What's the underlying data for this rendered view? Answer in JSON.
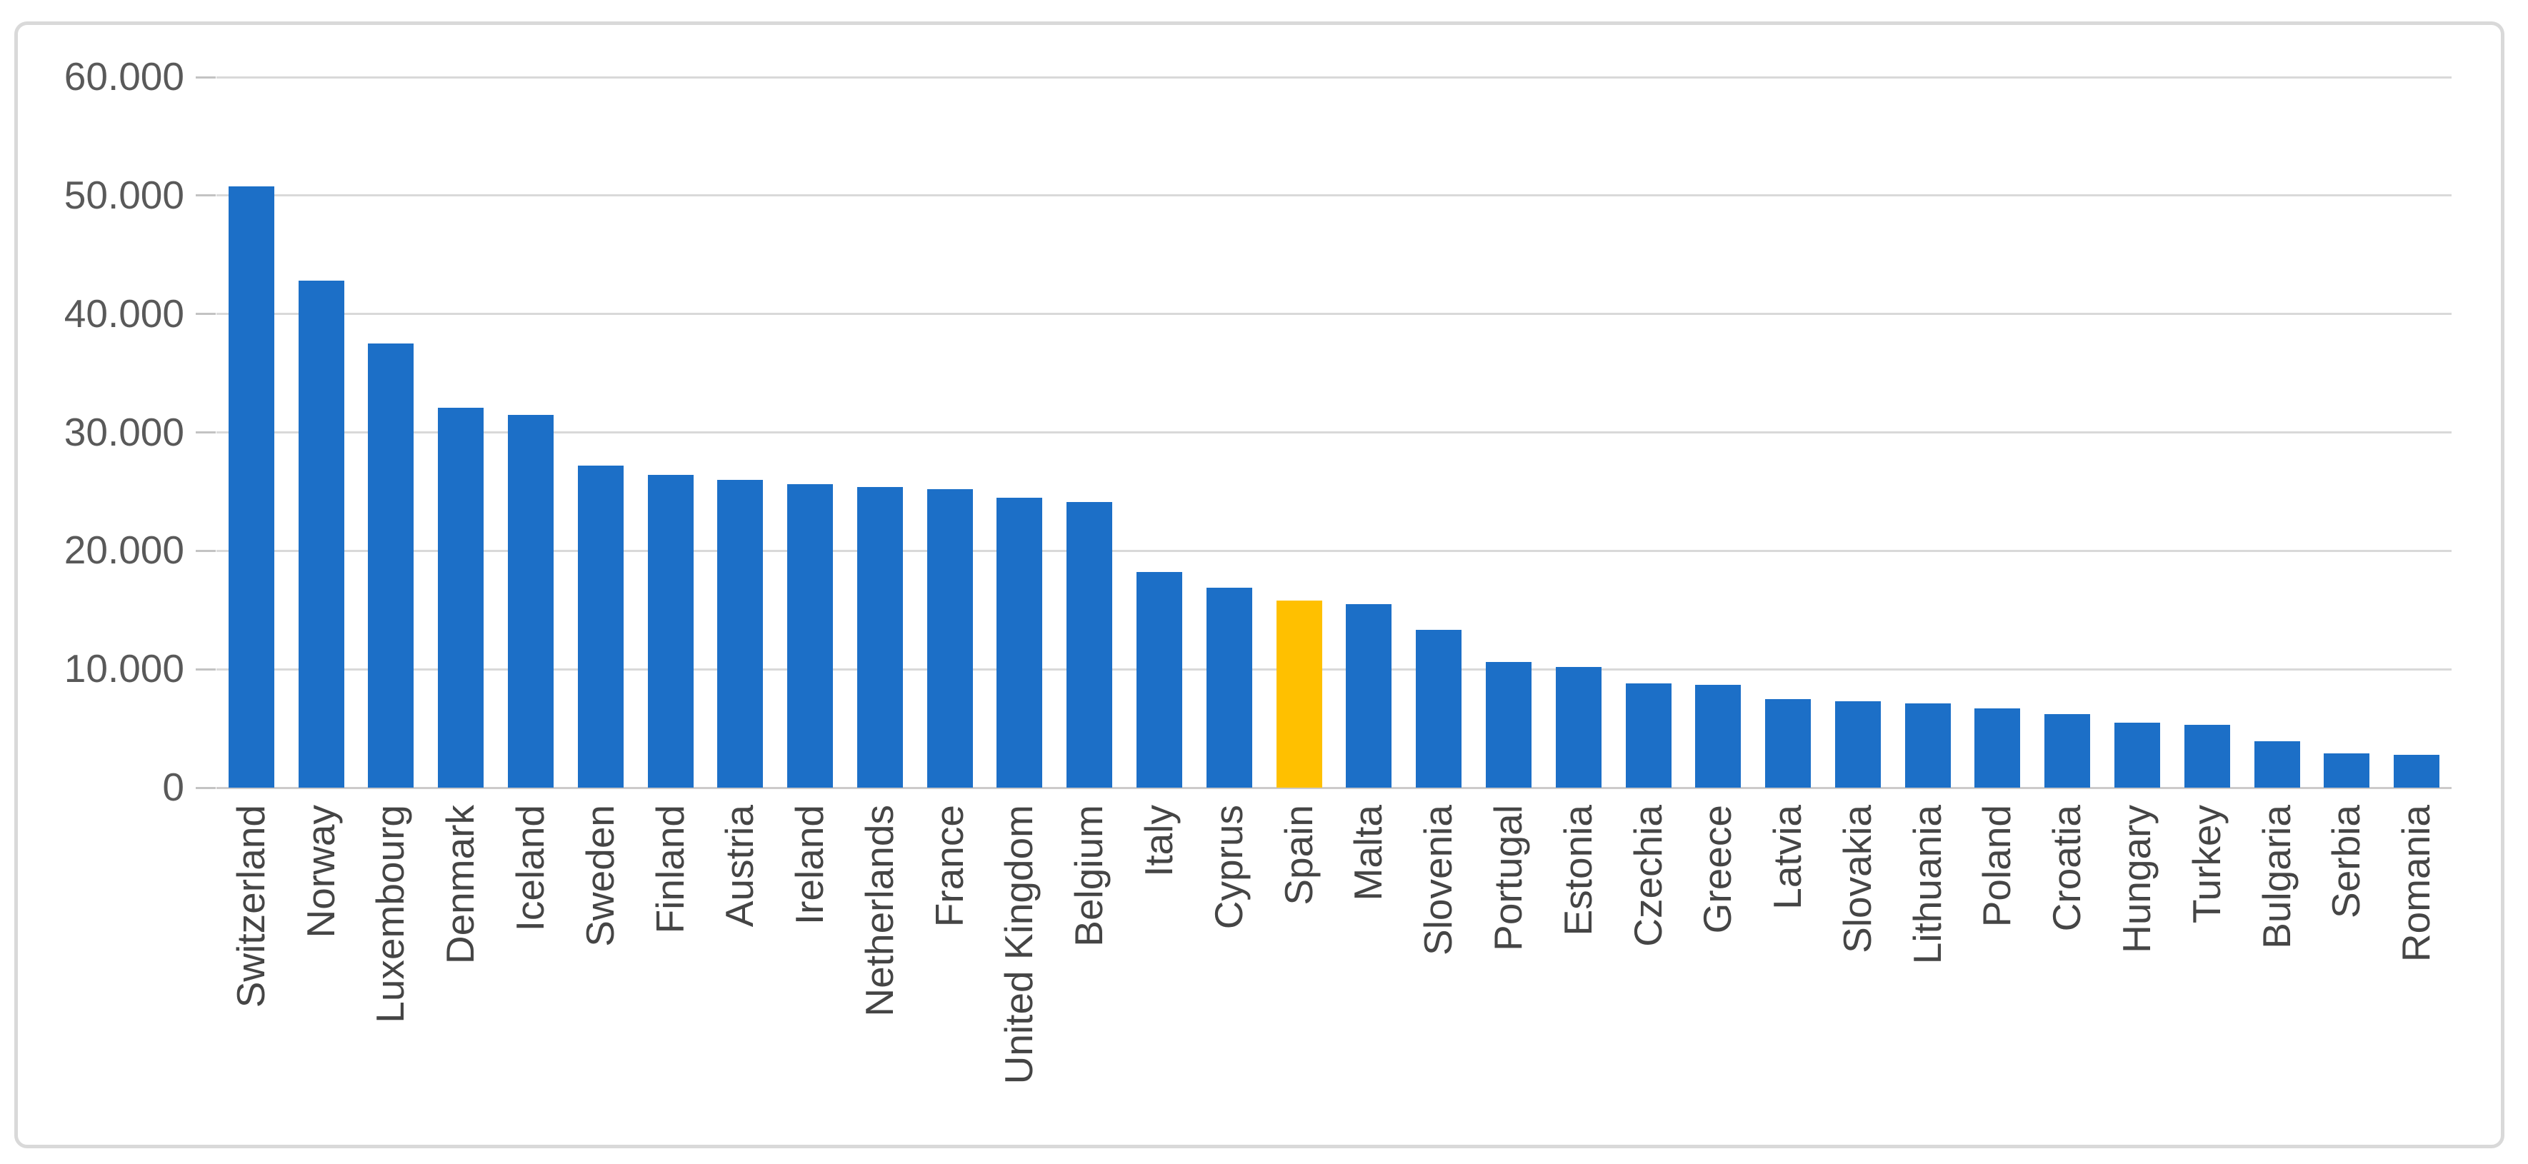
{
  "chart_data": {
    "type": "bar",
    "title": "",
    "xlabel": "",
    "ylabel": "",
    "legend": "none",
    "grid": "horizontal",
    "ylim": [
      0,
      60000
    ],
    "ytick_step": 10000,
    "ytick_labels": [
      "0",
      "10.000",
      "20.000",
      "30.000",
      "40.000",
      "50.000",
      "60.000"
    ],
    "highlighted_category": "Spain",
    "categories": [
      "Switzerland",
      "Norway",
      "Luxembourg",
      "Denmark",
      "Iceland",
      "Sweden",
      "Finland",
      "Austria",
      "Ireland",
      "Netherlands",
      "France",
      "United Kingdom",
      "Belgium",
      "Italy",
      "Cyprus",
      "Spain",
      "Malta",
      "Slovenia",
      "Portugal",
      "Estonia",
      "Czechia",
      "Greece",
      "Latvia",
      "Slovakia",
      "Lithuania",
      "Poland",
      "Croatia",
      "Hungary",
      "Turkey",
      "Bulgaria",
      "Serbia",
      "Romania"
    ],
    "values": [
      50800,
      42800,
      37500,
      32100,
      31500,
      27200,
      26400,
      26000,
      25600,
      25400,
      25200,
      24500,
      24100,
      18200,
      16900,
      15800,
      15500,
      13300,
      10600,
      10200,
      8800,
      8700,
      7500,
      7300,
      7100,
      6700,
      6200,
      5500,
      5300,
      3900,
      2900,
      2800
    ]
  },
  "colors": {
    "bar": "#1C6FC7",
    "highlight": "#FFC000",
    "gridline": "#D9D9D9",
    "axis_line": "#CCCACA",
    "tick": "#C3C3C3",
    "y_label_text": "#595959",
    "x_label_text": "#454545",
    "frame_border": "#D9D9D9",
    "background": "#FFFFFF"
  }
}
